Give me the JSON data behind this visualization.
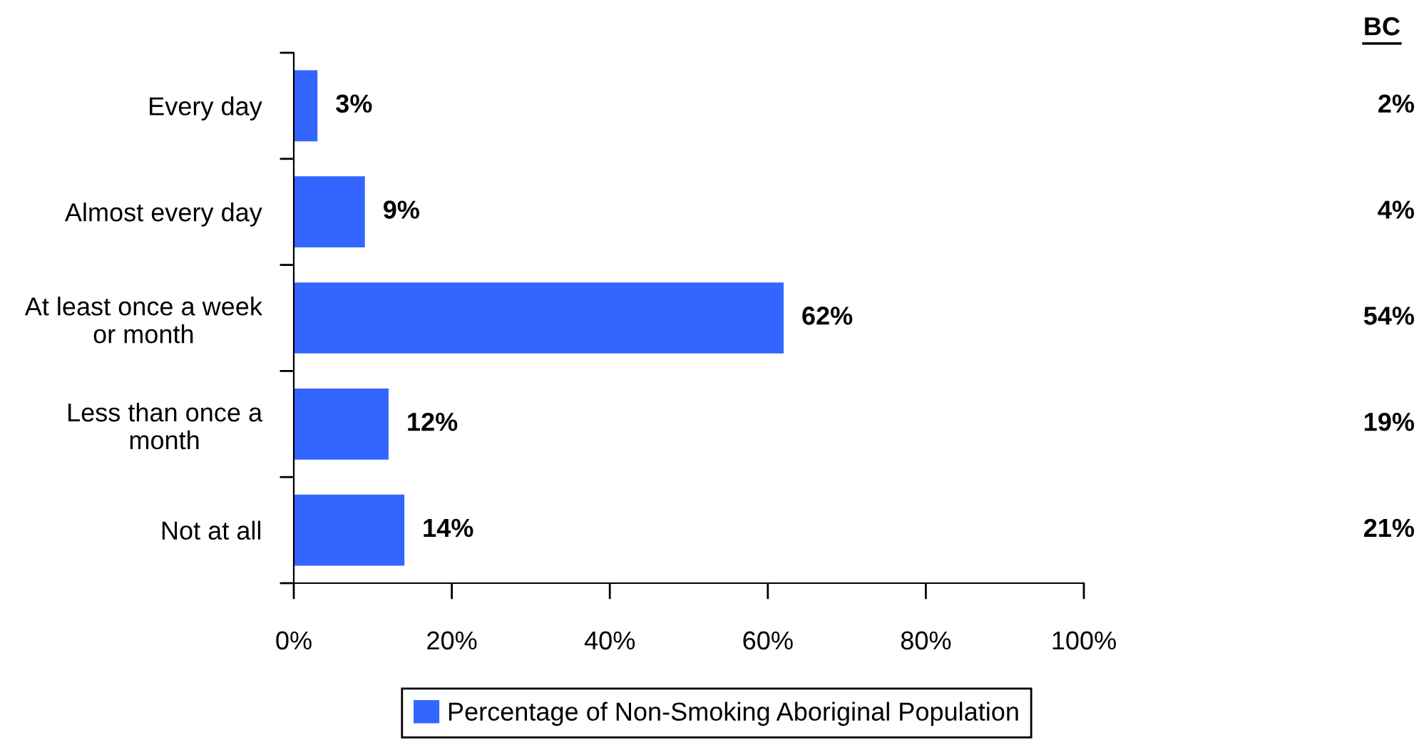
{
  "chart_data": {
    "type": "bar",
    "orientation": "horizontal",
    "categories": [
      "Every day",
      "Almost every day",
      "At least once a week\nor month",
      "Less than once a\nmonth",
      "Not at all"
    ],
    "series": [
      {
        "name": "Percentage of Non-Smoking Aboriginal Population",
        "color": "#3366ff",
        "values": [
          3,
          9,
          62,
          12,
          14
        ],
        "value_labels": [
          "3%",
          "9%",
          "62%",
          "12%",
          "14%"
        ]
      }
    ],
    "xlim": [
      0,
      100
    ],
    "xticks": [
      {
        "value": 0,
        "label": "0%"
      },
      {
        "value": 20,
        "label": "20%"
      },
      {
        "value": 40,
        "label": "40%"
      },
      {
        "value": 60,
        "label": "60%"
      },
      {
        "value": 80,
        "label": "80%"
      },
      {
        "value": 100,
        "label": "100%"
      }
    ],
    "annotations": [
      "BC",
      "2%",
      "4%",
      "54%",
      "19%",
      "21%"
    ],
    "grid": false,
    "legend": "bottom"
  }
}
